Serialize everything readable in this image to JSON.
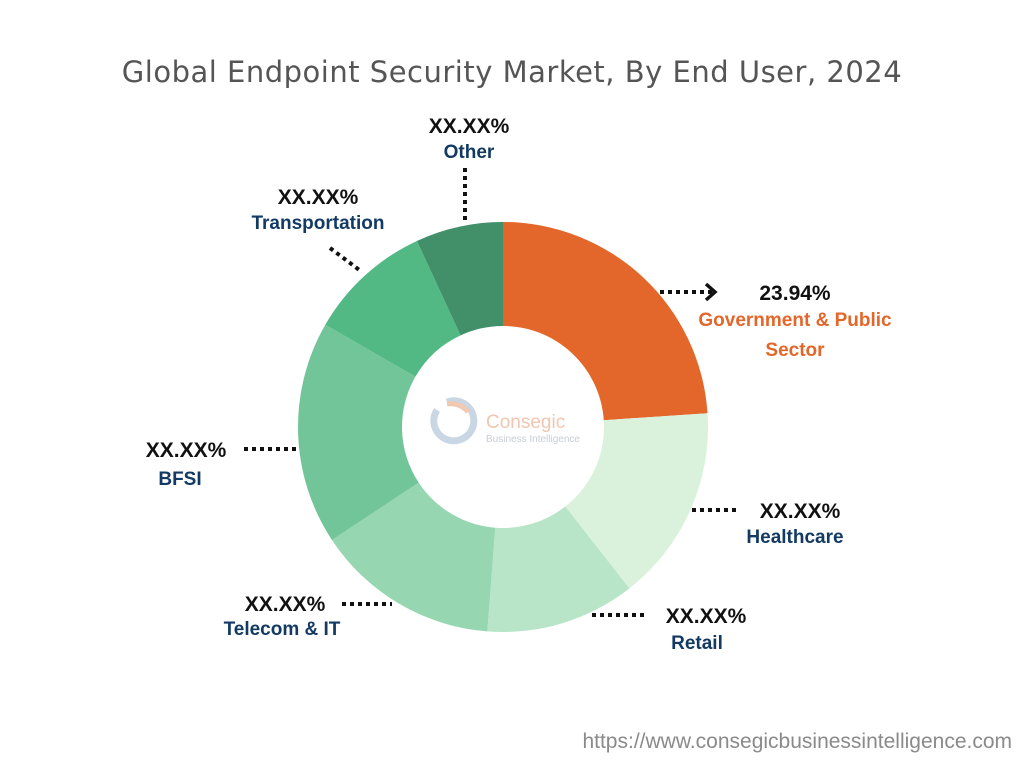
{
  "chart_data": {
    "type": "pie",
    "donut": true,
    "title": "Global Endpoint Security Market, By End User, 2024",
    "categories": [
      "Government & Public Sector",
      "Healthcare",
      "Retail",
      "Telecom & IT",
      "BFSI",
      "Transportation",
      "Other"
    ],
    "values": [
      23.94,
      15.5,
      11.8,
      14.5,
      17.6,
      9.8,
      6.9
    ],
    "value_labels": [
      "23.94%",
      "XX.XX%",
      "XX.XX%",
      "XX.XX%",
      "XX.XX%",
      "XX.XX%",
      "XX.XX%"
    ],
    "colors": [
      "#E3672A",
      "#DAF2DC",
      "#B8E5C8",
      "#96D6B0",
      "#72C598",
      "#52B884",
      "#41906A"
    ],
    "highlight_color": "#E3672A",
    "label_color": "#123A63"
  },
  "logo": {
    "text": "Consegic",
    "subtext": "Business Intelligence"
  },
  "footer": {
    "url": "https://www.consegicbusinessintelligence.com"
  }
}
